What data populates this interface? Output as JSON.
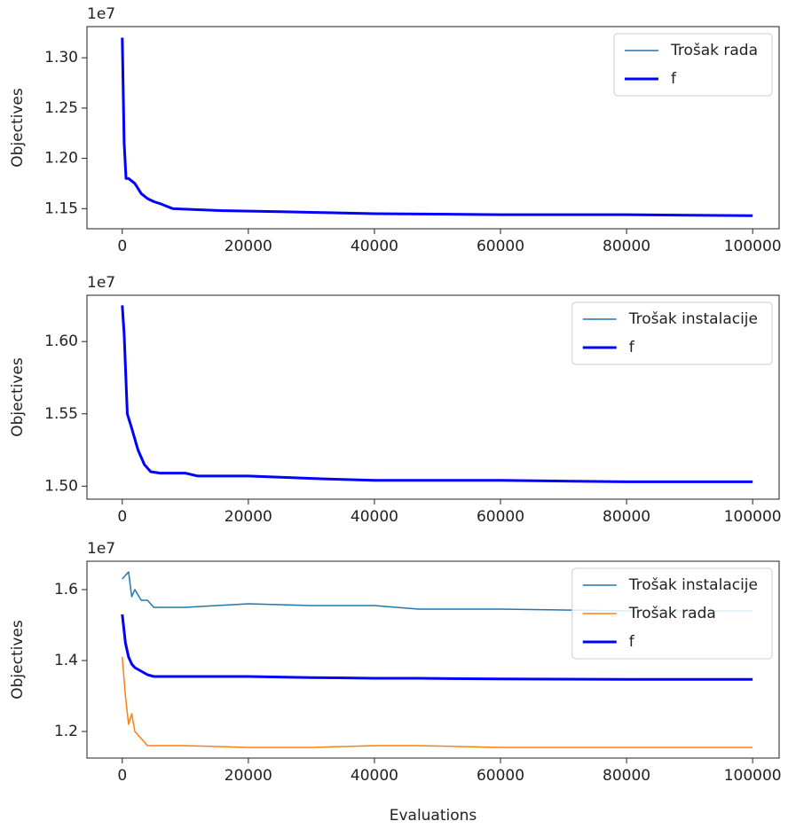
{
  "xlabel": "Evaluations",
  "chart_data": [
    {
      "type": "line",
      "ylabel": "Objectives",
      "offset_label": "1e7",
      "legend": "upper right",
      "x": [
        0,
        300,
        600,
        1000,
        2000,
        3000,
        4000,
        5000,
        6000,
        8000,
        12000,
        16000,
        25000,
        40000,
        60000,
        80000,
        100000
      ],
      "series": [
        {
          "name": "Trošak rada",
          "color": "#1f77b4",
          "width": 1.5,
          "values": [
            1.32,
            1.215,
            1.18,
            1.18,
            1.175,
            1.165,
            1.16,
            1.157,
            1.155,
            1.15,
            1.149,
            1.148,
            1.147,
            1.145,
            1.144,
            1.144,
            1.143
          ]
        },
        {
          "name": "f",
          "color": "#0000ff",
          "width": 3,
          "values": [
            1.32,
            1.215,
            1.18,
            1.18,
            1.175,
            1.165,
            1.16,
            1.157,
            1.155,
            1.15,
            1.149,
            1.148,
            1.147,
            1.145,
            1.144,
            1.144,
            1.143
          ]
        }
      ],
      "xlim": [
        -5600,
        104200
      ],
      "ylim": [
        1.13,
        1.331
      ],
      "xticks": [
        0,
        20000,
        40000,
        60000,
        80000,
        100000
      ],
      "yticks": [
        1.15,
        {
          "value": 1.2,
          "label": "1.20"
        },
        1.25,
        {
          "value": 1.3,
          "label": "1.30"
        }
      ]
    },
    {
      "type": "line",
      "ylabel": "Objectives",
      "offset_label": "1e7",
      "legend": "upper right",
      "x": [
        0,
        300,
        800,
        1500,
        2500,
        3500,
        4500,
        6000,
        10000,
        12000,
        20000,
        32000,
        40000,
        60000,
        80000,
        100000
      ],
      "series": [
        {
          "name": "Trošak instalacije",
          "color": "#1f77b4",
          "width": 1.5,
          "values": [
            1.625,
            1.605,
            1.55,
            1.54,
            1.525,
            1.515,
            1.51,
            1.509,
            1.509,
            1.507,
            1.507,
            1.505,
            1.504,
            1.504,
            1.503,
            1.503
          ]
        },
        {
          "name": "f",
          "color": "#0000ff",
          "width": 3,
          "values": [
            1.625,
            1.605,
            1.55,
            1.54,
            1.525,
            1.515,
            1.51,
            1.509,
            1.509,
            1.507,
            1.507,
            1.505,
            1.504,
            1.504,
            1.503,
            1.503
          ]
        }
      ],
      "xlim": [
        -5600,
        104200
      ],
      "ylim": [
        1.491,
        1.632
      ],
      "xticks": [
        0,
        20000,
        40000,
        60000,
        80000,
        100000
      ],
      "yticks": [
        {
          "value": 1.5,
          "label": "1.50"
        },
        1.55,
        {
          "value": 1.6,
          "label": "1.60"
        }
      ]
    },
    {
      "type": "line",
      "ylabel": "Objectives",
      "offset_label": "1e7",
      "legend": "upper right",
      "x": [
        0,
        500,
        1000,
        1500,
        2000,
        3000,
        4000,
        5000,
        10000,
        20000,
        30000,
        40000,
        47000,
        60000,
        80000,
        100000
      ],
      "series": [
        {
          "name": "Trošak instalacije",
          "color": "#1f77b4",
          "width": 1.5,
          "values": [
            1.63,
            1.64,
            1.65,
            1.58,
            1.6,
            1.57,
            1.57,
            1.55,
            1.55,
            1.56,
            1.555,
            1.555,
            1.545,
            1.545,
            1.54,
            1.54
          ]
        },
        {
          "name": "Trošak rada",
          "color": "#ff7f0e",
          "width": 1.5,
          "values": [
            1.41,
            1.3,
            1.22,
            1.25,
            1.2,
            1.18,
            1.16,
            1.16,
            1.16,
            1.155,
            1.155,
            1.16,
            1.16,
            1.155,
            1.155,
            1.155
          ]
        },
        {
          "name": "f",
          "color": "#0000ff",
          "width": 3,
          "values": [
            1.53,
            1.45,
            1.41,
            1.39,
            1.38,
            1.37,
            1.36,
            1.355,
            1.355,
            1.355,
            1.352,
            1.35,
            1.35,
            1.348,
            1.347,
            1.347
          ]
        }
      ],
      "xlim": [
        -5600,
        104200
      ],
      "ylim": [
        1.125,
        1.68
      ],
      "xticks": [
        0,
        20000,
        40000,
        60000,
        80000,
        100000
      ],
      "yticks": [
        1.2,
        1.4,
        1.6
      ]
    }
  ]
}
